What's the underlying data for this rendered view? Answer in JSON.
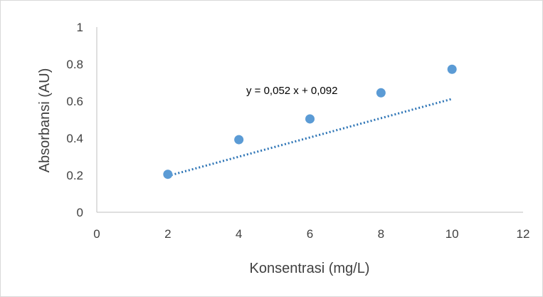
{
  "chart_data": {
    "type": "scatter",
    "title": "",
    "xlabel": "Konsentrasi (mg/L)",
    "ylabel": "Absorbansi (AU)",
    "xlim": [
      0,
      12
    ],
    "ylim": [
      0,
      1
    ],
    "x_ticks": [
      "0",
      "2",
      "4",
      "6",
      "8",
      "10",
      "12"
    ],
    "y_ticks": [
      "0",
      "0.2",
      "0.4",
      "0.6",
      "0.8",
      "1"
    ],
    "grid": false,
    "legend": "none",
    "series": [
      {
        "x": [
          2,
          4,
          6,
          8,
          10
        ],
        "y": [
          0.205,
          0.392,
          0.504,
          0.645,
          0.772
        ],
        "color": "#5b9bd5"
      }
    ],
    "trendline": {
      "type": "linear",
      "slope": 0.052,
      "intercept": 0.092,
      "style": "dotted",
      "color": "#2e75b6",
      "x_range": [
        2,
        10
      ],
      "equation_label": "y = 0,052 x + 0,092"
    }
  }
}
